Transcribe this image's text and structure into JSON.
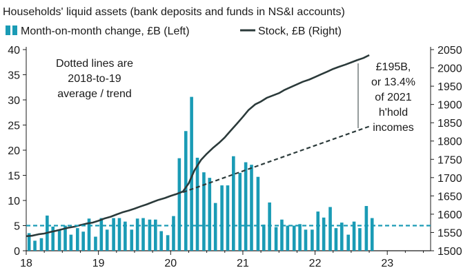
{
  "chart_data": {
    "type": "bar+line",
    "title": "Households' liquid assets (bank deposits and funds in NS&I accounts)",
    "x_tick_labels": [
      "18",
      "19",
      "20",
      "21",
      "22",
      "23"
    ],
    "x_tick_positions": [
      2018,
      2019,
      2020,
      2021,
      2022,
      2023
    ],
    "xlim": [
      2018,
      2023.6
    ],
    "left_axis": {
      "ylim": [
        0,
        40
      ],
      "ticks": [
        0,
        5,
        10,
        15,
        20,
        25,
        30,
        35,
        40
      ]
    },
    "right_axis": {
      "ylim": [
        1500,
        2050
      ],
      "ticks": [
        1500,
        1550,
        1600,
        1650,
        1700,
        1750,
        1800,
        1850,
        1900,
        1950,
        2000,
        2050
      ]
    },
    "series": [
      {
        "name": "Month-on-month change, £B (Left)",
        "type": "bar",
        "axis": "left",
        "color": "#1a9bb5",
        "x": [
          2018.04,
          2018.12,
          2018.21,
          2018.29,
          2018.37,
          2018.46,
          2018.54,
          2018.62,
          2018.71,
          2018.79,
          2018.87,
          2018.96,
          2019.04,
          2019.12,
          2019.21,
          2019.29,
          2019.37,
          2019.46,
          2019.54,
          2019.62,
          2019.71,
          2019.79,
          2019.87,
          2019.96,
          2020.04,
          2020.12,
          2020.21,
          2020.29,
          2020.37,
          2020.46,
          2020.54,
          2020.62,
          2020.71,
          2020.79,
          2020.87,
          2020.96,
          2021.04,
          2021.12,
          2021.21,
          2021.29,
          2021.37,
          2021.46,
          2021.54,
          2021.62,
          2021.71,
          2021.79,
          2021.87,
          2021.96,
          2022.04,
          2022.12,
          2022.21,
          2022.29,
          2022.37,
          2022.46,
          2022.54,
          2022.62,
          2022.71,
          2022.79
        ],
        "values": [
          3.5,
          2.0,
          2.5,
          7.0,
          4.8,
          4.2,
          5.0,
          3.2,
          4.5,
          3.8,
          6.4,
          2.8,
          6.5,
          4.2,
          6.5,
          6.5,
          5.8,
          4.2,
          6.4,
          6.5,
          6.2,
          6.2,
          3.9,
          3.1,
          6.9,
          18.4,
          23.8,
          30.6,
          18.5,
          15.6,
          14.5,
          9.5,
          13.0,
          13.0,
          18.8,
          15.5,
          17.6,
          17.1,
          14.7,
          5.2,
          9.6,
          4.7,
          6.2,
          5.0,
          5.0,
          5.3,
          4.2,
          4.2,
          7.8,
          6.6,
          8.7,
          4.5,
          5.6,
          3.2,
          5.8,
          4.5,
          8.9,
          6.5
        ]
      },
      {
        "name": "Stock, £B (Right)",
        "type": "line",
        "axis": "right",
        "color": "#2b3a3a",
        "x": [
          2018.0,
          2018.08,
          2018.17,
          2018.25,
          2018.33,
          2018.42,
          2018.5,
          2018.58,
          2018.67,
          2018.75,
          2018.83,
          2018.92,
          2019.0,
          2019.08,
          2019.17,
          2019.25,
          2019.33,
          2019.42,
          2019.5,
          2019.58,
          2019.67,
          2019.75,
          2019.83,
          2019.92,
          2020.0,
          2020.08,
          2020.17,
          2020.25,
          2020.33,
          2020.42,
          2020.5,
          2020.58,
          2020.67,
          2020.75,
          2020.83,
          2020.92,
          2021.0,
          2021.08,
          2021.17,
          2021.25,
          2021.33,
          2021.42,
          2021.5,
          2021.58,
          2021.67,
          2021.75,
          2021.83,
          2021.92,
          2022.0,
          2022.08,
          2022.17,
          2022.25,
          2022.33,
          2022.42,
          2022.5,
          2022.58,
          2022.67,
          2022.75
        ],
        "values": [
          1540,
          1541,
          1545,
          1547,
          1551,
          1555,
          1559,
          1563,
          1566,
          1570,
          1574,
          1577,
          1582,
          1588,
          1593,
          1599,
          1605,
          1610,
          1615,
          1621,
          1627,
          1633,
          1639,
          1644,
          1650,
          1655,
          1662,
          1684,
          1720,
          1748,
          1765,
          1780,
          1795,
          1810,
          1828,
          1848,
          1866,
          1885,
          1900,
          1908,
          1918,
          1925,
          1931,
          1940,
          1948,
          1955,
          1962,
          1968,
          1975,
          1982,
          1990,
          1997,
          2003,
          2009,
          2015,
          2021,
          2027,
          2035
        ]
      },
      {
        "name": "2018-to-19 average",
        "type": "line",
        "style": "dotted",
        "axis": "left",
        "color": "#1a9bb5",
        "x": [
          2018.0,
          2023.6
        ],
        "values": [
          5.0,
          5.0
        ]
      },
      {
        "name": "2018-to-19 trend",
        "type": "line",
        "style": "dotted",
        "axis": "right",
        "color": "#2b3a3a",
        "x": [
          2020.17,
          2022.75
        ],
        "values": [
          1660,
          1840
        ]
      }
    ],
    "legend": {
      "placement": "top",
      "items": [
        {
          "label": "Month-on-month change, £B (Left)",
          "marker": "bar",
          "color": "#1a9bb5"
        },
        {
          "label": "Stock, £B (Right)",
          "marker": "line",
          "color": "#2b3a3a"
        }
      ]
    },
    "annotations": {
      "dotted_note": [
        "Dotted lines are",
        "2018-to-19",
        "average / trend"
      ],
      "gap_note": [
        "£195B,",
        "or 13.4%",
        "of 2021",
        "h'hold",
        "incomes"
      ]
    }
  }
}
